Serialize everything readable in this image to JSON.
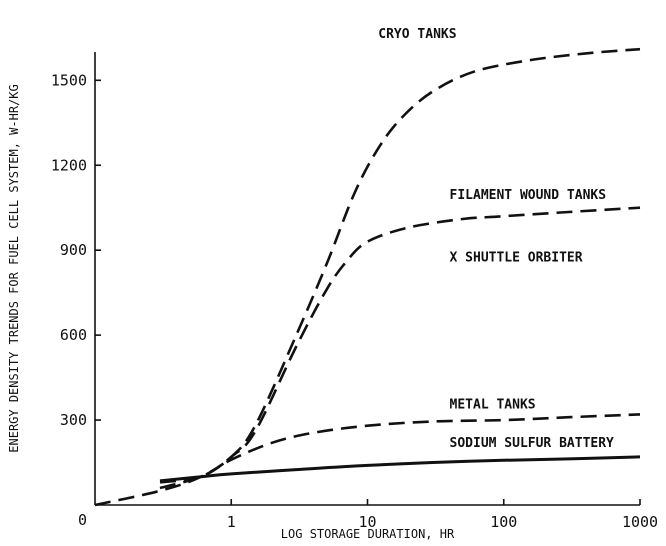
{
  "chart_data": {
    "type": "line",
    "title": "",
    "xlabel": "LOG STORAGE DURATION, HR",
    "ylabel": "ENERGY DENSITY TRENDS FOR FUEL CELL SYSTEM, W-HR/KG",
    "x_scale": "log",
    "xlim": [
      0.1,
      1000
    ],
    "ylim": [
      0,
      1600
    ],
    "x_ticks": [
      {
        "value": 1,
        "label": "1"
      },
      {
        "value": 10,
        "label": "10"
      },
      {
        "value": 100,
        "label": "100"
      },
      {
        "value": 1000,
        "label": "1000"
      }
    ],
    "x_origin_label": "0",
    "y_ticks": [
      {
        "value": 300,
        "label": "300"
      },
      {
        "value": 600,
        "label": "600"
      },
      {
        "value": 900,
        "label": "900"
      },
      {
        "value": 1200,
        "label": "1200"
      },
      {
        "value": 1500,
        "label": "1500"
      }
    ],
    "grid": false,
    "series": [
      {
        "name": "CRYO TANKS",
        "style": "dashed",
        "points": [
          [
            0.1,
            0
          ],
          [
            0.3,
            50
          ],
          [
            0.6,
            100
          ],
          [
            1,
            170
          ],
          [
            1.5,
            280
          ],
          [
            3,
            600
          ],
          [
            5,
            850
          ],
          [
            8,
            1100
          ],
          [
            12,
            1260
          ],
          [
            18,
            1370
          ],
          [
            30,
            1460
          ],
          [
            60,
            1530
          ],
          [
            150,
            1570
          ],
          [
            400,
            1595
          ],
          [
            1000,
            1610
          ]
        ]
      },
      {
        "name": "FILAMENT WOUND TANKS",
        "style": "dashed",
        "points": [
          [
            0.3,
            80
          ],
          [
            0.6,
            100
          ],
          [
            1,
            170
          ],
          [
            1.5,
            260
          ],
          [
            3,
            560
          ],
          [
            5,
            760
          ],
          [
            7,
            860
          ],
          [
            10,
            930
          ],
          [
            20,
            980
          ],
          [
            50,
            1010
          ],
          [
            100,
            1020
          ],
          [
            300,
            1035
          ],
          [
            1000,
            1050
          ]
        ]
      },
      {
        "name": "METAL TANKS",
        "style": "dashed",
        "points": [
          [
            0.3,
            60
          ],
          [
            0.6,
            100
          ],
          [
            1,
            160
          ],
          [
            2,
            220
          ],
          [
            4,
            255
          ],
          [
            10,
            280
          ],
          [
            30,
            295
          ],
          [
            100,
            300
          ],
          [
            300,
            310
          ],
          [
            1000,
            320
          ]
        ]
      },
      {
        "name": "SODIUM SULFUR BATTERY",
        "style": "solid",
        "points": [
          [
            0.3,
            85
          ],
          [
            0.6,
            100
          ],
          [
            1,
            110
          ],
          [
            3,
            125
          ],
          [
            10,
            140
          ],
          [
            30,
            150
          ],
          [
            100,
            158
          ],
          [
            300,
            163
          ],
          [
            1000,
            170
          ]
        ]
      }
    ],
    "annotations": [
      {
        "text": "CRYO TANKS",
        "x": 12,
        "y": 1650
      },
      {
        "text": "FILAMENT WOUND TANKS",
        "x": 40,
        "y": 1080
      },
      {
        "text": "METAL TANKS",
        "x": 40,
        "y": 340
      },
      {
        "text": "SODIUM SULFUR BATTERY",
        "x": 40,
        "y": 205
      }
    ],
    "marker": {
      "text": "X SHUTTLE ORBITER",
      "x": 40,
      "y": 860
    }
  }
}
